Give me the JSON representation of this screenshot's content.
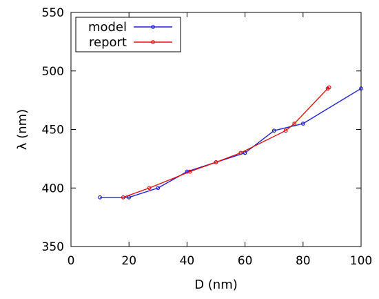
{
  "chart_data": {
    "type": "line",
    "xlabel": "D (nm)",
    "ylabel": "λ (nm)",
    "xlim": [
      0,
      100
    ],
    "ylim": [
      350,
      550
    ],
    "xticks": [
      0,
      20,
      40,
      60,
      80,
      100
    ],
    "yticks": [
      350,
      400,
      450,
      500,
      550
    ],
    "grid": false,
    "legend_position": "top-left",
    "series": [
      {
        "name": "model",
        "color": "#1f1fd8",
        "x": [
          10,
          20,
          30,
          40,
          50,
          60,
          70,
          80,
          100
        ],
        "y": [
          392,
          392,
          400,
          414,
          422,
          430,
          449,
          455,
          485
        ]
      },
      {
        "name": "report",
        "color": "#e01010",
        "x": [
          18,
          27,
          41,
          50,
          58.5,
          74,
          77,
          88.5,
          89
        ],
        "y": [
          392,
          400,
          414,
          422,
          430,
          449,
          455,
          485,
          486
        ]
      }
    ]
  }
}
